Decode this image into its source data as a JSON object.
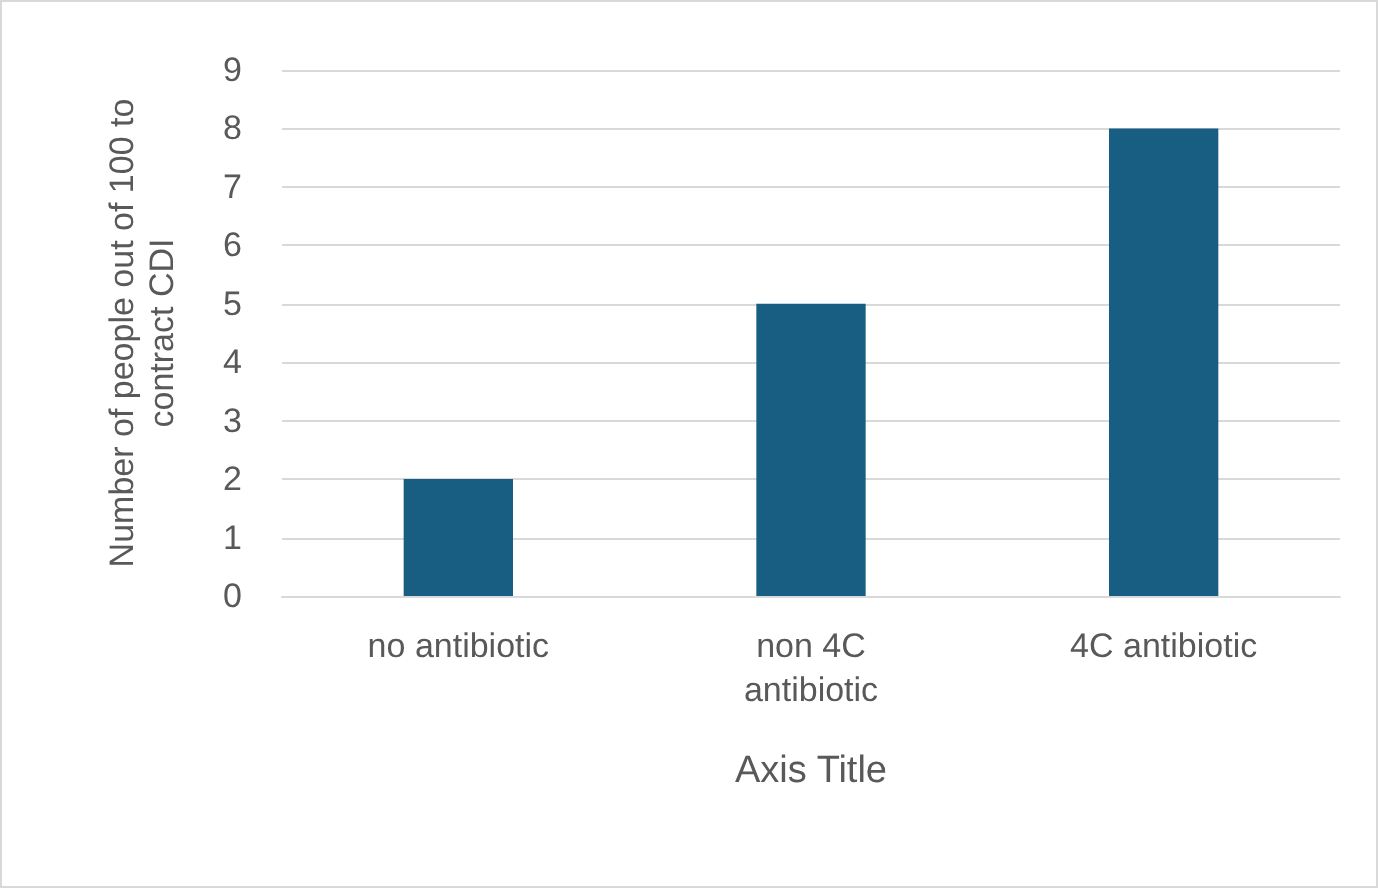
{
  "chart_data": {
    "type": "bar",
    "xlabel": "Axis Title",
    "ylabel": "Number of people out of 100 to contract CDI",
    "categories": [
      "no antibiotic",
      "non 4C antibiotic",
      "4C antibiotic"
    ],
    "values": [
      2,
      5,
      8
    ],
    "color": "#175e82",
    "ylim": [
      0,
      9
    ],
    "yticks": [
      0,
      1,
      2,
      3,
      4,
      5,
      6,
      7,
      8,
      9
    ],
    "grid": "y"
  }
}
